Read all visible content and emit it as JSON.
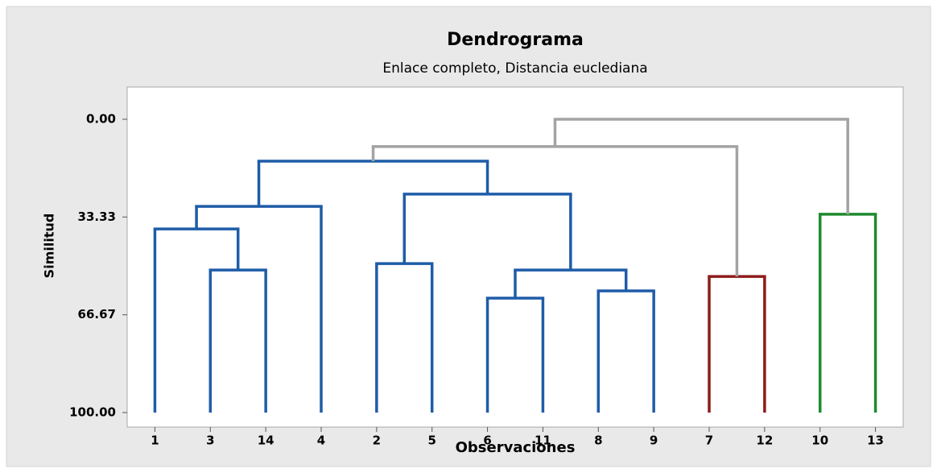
{
  "chart_data": {
    "type": "dendrogram",
    "title": "Dendrograma",
    "subtitle": "Enlace completo, Distancia euclediana",
    "x_label": "Observaciones",
    "y_label": "Similitud",
    "ylim": [
      100,
      0
    ],
    "yticks": [
      {
        "value": 0,
        "label": "0.00"
      },
      33.33,
      66.67,
      {
        "value": 100,
        "label": "100.00"
      }
    ],
    "tree": {
      "value": 0,
      "color": "#a3a3a3",
      "children": [
        {
          "value": 9.3,
          "color": "#a3a3a3",
          "children": [
            {
              "value": 14.3,
              "color": "#1f5ca8",
              "children": [
                {
                  "value": 29.7,
                  "color": "#1f5ca8",
                  "children": [
                    {
                      "value": 37.4,
                      "color": "#1f5ca8",
                      "children": [
                        {
                          "label": "1"
                        },
                        {
                          "value": 51.4,
                          "color": "#1f5ca8",
                          "children": [
                            {
                              "label": "3"
                            },
                            {
                              "label": "14"
                            }
                          ]
                        }
                      ]
                    },
                    {
                      "label": "4"
                    }
                  ]
                },
                {
                  "value": 25.5,
                  "color": "#1f5ca8",
                  "children": [
                    {
                      "value": 49.2,
                      "color": "#1f5ca8",
                      "children": [
                        {
                          "label": "2"
                        },
                        {
                          "label": "5"
                        }
                      ]
                    },
                    {
                      "value": 51.4,
                      "color": "#1f5ca8",
                      "children": [
                        {
                          "value": 61.0,
                          "color": "#1f5ca8",
                          "children": [
                            {
                              "label": "6"
                            },
                            {
                              "label": "11"
                            }
                          ]
                        },
                        {
                          "value": 58.5,
                          "color": "#1f5ca8",
                          "children": [
                            {
                              "label": "8"
                            },
                            {
                              "label": "9"
                            }
                          ]
                        }
                      ]
                    }
                  ]
                }
              ]
            },
            {
              "value": 53.6,
              "color": "#8e1b1b",
              "children": [
                {
                  "label": "7"
                },
                {
                  "label": "12"
                }
              ]
            }
          ]
        },
        {
          "value": 32.4,
          "color": "#1e8a2e",
          "children": [
            {
              "label": "10"
            },
            {
              "label": "13"
            }
          ]
        }
      ]
    }
  }
}
